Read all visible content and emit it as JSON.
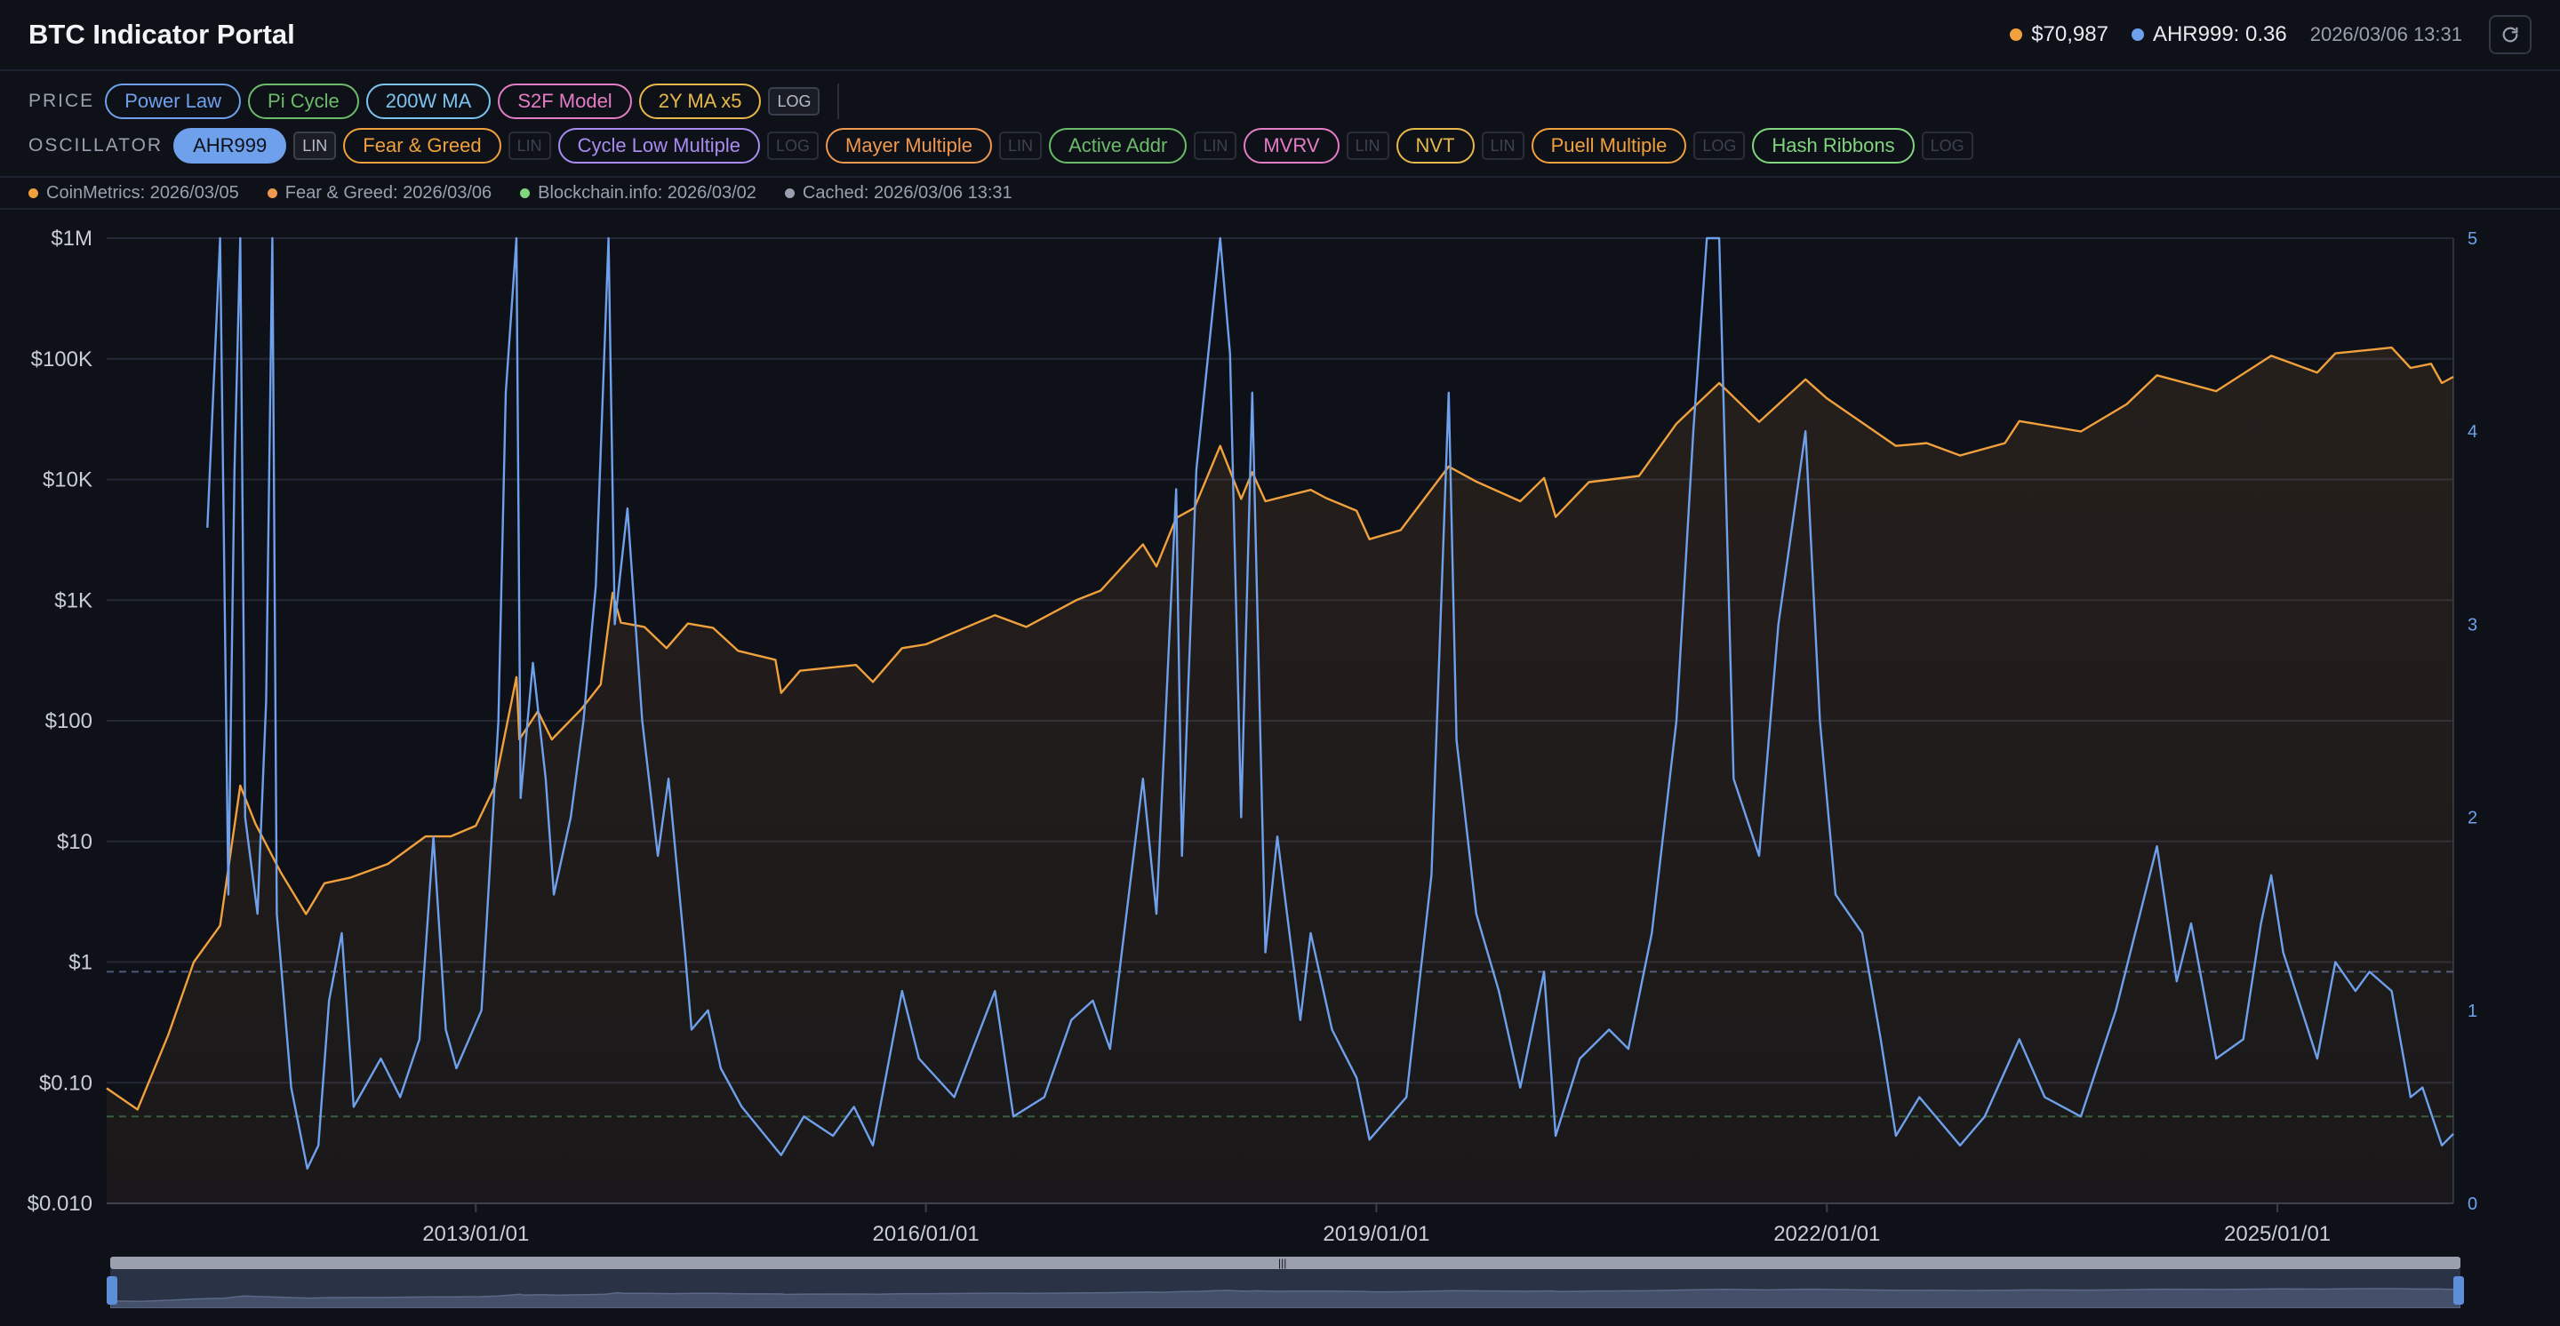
{
  "app": {
    "title": "BTC Indicator Portal",
    "price_value": "$70,987",
    "oscillator_value": "AHR999: 0.36",
    "timestamp": "2026/03/06 13:31",
    "refresh_icon": "refresh-icon"
  },
  "colors": {
    "price": "#f0a03c",
    "oscillator": "#6ea0ec",
    "background": "#0f1118"
  },
  "price_row": {
    "label": "PRICE",
    "chips": [
      {
        "label": "Power Law",
        "color": "#6ea0ec",
        "active": false
      },
      {
        "label": "Pi Cycle",
        "color": "#6cbb6a",
        "active": false
      },
      {
        "label": "200W MA",
        "color": "#7cc4f0",
        "active": false
      },
      {
        "label": "S2F Model",
        "color": "#e47cc6",
        "active": false
      },
      {
        "label": "2Y MA x5",
        "color": "#e7b84a",
        "active": false
      }
    ],
    "scale": "LOG"
  },
  "oscillator_row": {
    "label": "OSCILLATOR",
    "chips": [
      {
        "label": "AHR999",
        "color": "#6ea0ec",
        "active": true,
        "scale": "LIN",
        "scale_on": true
      },
      {
        "label": "Fear & Greed",
        "color": "#f0a03c",
        "active": false,
        "scale": "LIN",
        "scale_on": false
      },
      {
        "label": "Cycle Low Multiple",
        "color": "#a98cf2",
        "active": false,
        "scale": "LOG",
        "scale_on": false
      },
      {
        "label": "Mayer Multiple",
        "color": "#f09850",
        "active": false,
        "scale": "LIN",
        "scale_on": false
      },
      {
        "label": "Active Addr",
        "color": "#6cbb6a",
        "active": false,
        "scale": "LIN",
        "scale_on": false
      },
      {
        "label": "MVRV",
        "color": "#e47cc6",
        "active": false,
        "scale": "LIN",
        "scale_on": false
      },
      {
        "label": "NVT",
        "color": "#e7b84a",
        "active": false,
        "scale": "LIN",
        "scale_on": false
      },
      {
        "label": "Puell Multiple",
        "color": "#f0a03c",
        "active": false,
        "scale": "LOG",
        "scale_on": false
      },
      {
        "label": "Hash Ribbons",
        "color": "#7fd67d",
        "active": false,
        "scale": "LOG",
        "scale_on": false
      }
    ]
  },
  "sources": [
    {
      "text": "CoinMetrics: 2026/03/05",
      "color": "#f0a03c"
    },
    {
      "text": "Fear & Greed: 2026/03/06",
      "color": "#f09850"
    },
    {
      "text": "Blockchain.info: 2026/03/02",
      "color": "#7fd67d"
    },
    {
      "text": "Cached: 2026/03/06 13:31",
      "color": "#9aa0ae"
    }
  ],
  "range_slider": {
    "start_fraction": 0.0,
    "end_fraction": 1.0
  },
  "chart_data": {
    "type": "line",
    "title": "",
    "xlabel": "",
    "ylabel": "",
    "x_ticks": [
      "2013/01/01",
      "2016/01/01",
      "2019/01/01",
      "2022/01/01",
      "2025/01/01"
    ],
    "x_tick_dates": [
      "2013-01-01",
      "2016-01-01",
      "2019-01-01",
      "2022-01-01",
      "2025-01-01"
    ],
    "xlim": [
      "2010-07-18",
      "2026-03-05"
    ],
    "y_left": {
      "scale": "log",
      "ylim": [
        0.01,
        1000000
      ],
      "ticks": [
        0.01,
        0.1,
        1,
        10,
        100,
        1000,
        10000,
        100000,
        1000000
      ],
      "tick_labels": [
        "$0.010",
        "$0.10",
        "$1",
        "$10",
        "$100",
        "$1K",
        "$10K",
        "$100K",
        "$1M"
      ]
    },
    "y_right": {
      "scale": "linear",
      "ylim": [
        0,
        5
      ],
      "ticks": [
        0,
        1,
        2,
        3,
        4,
        5
      ],
      "tick_labels": [
        "0",
        "1",
        "2",
        "3",
        "4",
        "5"
      ]
    },
    "reference_lines": [
      {
        "axis": "right",
        "value": 1.2,
        "color": "#4a5a78"
      },
      {
        "axis": "right",
        "value": 0.45,
        "color": "#2e5a3c"
      }
    ],
    "grid": true,
    "series": [
      {
        "axis": "left",
        "color": "#f0a03c",
        "fill": true,
        "points": [
          [
            "2010-07-18",
            0.09
          ],
          [
            "2010-10-01",
            0.06
          ],
          [
            "2010-12-15",
            0.25
          ],
          [
            "2011-02-15",
            1.0
          ],
          [
            "2011-04-20",
            2.0
          ],
          [
            "2011-06-08",
            29
          ],
          [
            "2011-07-15",
            14
          ],
          [
            "2011-09-15",
            5.5
          ],
          [
            "2011-11-15",
            2.5
          ],
          [
            "2011-12-30",
            4.5
          ],
          [
            "2012-03-01",
            5.0
          ],
          [
            "2012-06-01",
            6.5
          ],
          [
            "2012-09-01",
            11
          ],
          [
            "2012-11-01",
            11
          ],
          [
            "2013-01-01",
            13.5
          ],
          [
            "2013-02-15",
            28
          ],
          [
            "2013-04-10",
            230
          ],
          [
            "2013-04-17",
            70
          ],
          [
            "2013-06-01",
            120
          ],
          [
            "2013-07-05",
            70
          ],
          [
            "2013-09-15",
            125
          ],
          [
            "2013-11-01",
            200
          ],
          [
            "2013-11-30",
            1150
          ],
          [
            "2013-12-20",
            650
          ],
          [
            "2014-02-15",
            600
          ],
          [
            "2014-04-10",
            400
          ],
          [
            "2014-06-01",
            640
          ],
          [
            "2014-08-01",
            590
          ],
          [
            "2014-10-01",
            380
          ],
          [
            "2014-12-31",
            320
          ],
          [
            "2015-01-14",
            170
          ],
          [
            "2015-03-01",
            260
          ],
          [
            "2015-07-15",
            290
          ],
          [
            "2015-08-25",
            210
          ],
          [
            "2015-11-04",
            400
          ],
          [
            "2016-01-01",
            430
          ],
          [
            "2016-06-17",
            750
          ],
          [
            "2016-09-01",
            600
          ],
          [
            "2017-01-01",
            1000
          ],
          [
            "2017-03-01",
            1200
          ],
          [
            "2017-06-12",
            2900
          ],
          [
            "2017-07-15",
            1900
          ],
          [
            "2017-09-01",
            4800
          ],
          [
            "2017-10-15",
            5800
          ],
          [
            "2017-12-17",
            19000
          ],
          [
            "2018-02-06",
            6900
          ],
          [
            "2018-03-05",
            11500
          ],
          [
            "2018-04-06",
            6600
          ],
          [
            "2018-07-25",
            8200
          ],
          [
            "2018-09-01",
            7000
          ],
          [
            "2018-11-14",
            5500
          ],
          [
            "2018-12-15",
            3200
          ],
          [
            "2019-03-01",
            3800
          ],
          [
            "2019-06-26",
            12800
          ],
          [
            "2019-09-01",
            9600
          ],
          [
            "2019-12-17",
            6600
          ],
          [
            "2020-02-13",
            10300
          ],
          [
            "2020-03-12",
            4900
          ],
          [
            "2020-06-01",
            9500
          ],
          [
            "2020-10-01",
            10700
          ],
          [
            "2020-12-31",
            29000
          ],
          [
            "2021-04-14",
            63000
          ],
          [
            "2021-07-20",
            30000
          ],
          [
            "2021-11-10",
            67500
          ],
          [
            "2022-01-01",
            47000
          ],
          [
            "2022-06-18",
            19000
          ],
          [
            "2022-09-01",
            20000
          ],
          [
            "2022-11-21",
            15800
          ],
          [
            "2023-03-10",
            20000
          ],
          [
            "2023-04-14",
            30500
          ],
          [
            "2023-09-11",
            25000
          ],
          [
            "2023-12-31",
            42000
          ],
          [
            "2024-03-14",
            73000
          ],
          [
            "2024-08-05",
            54000
          ],
          [
            "2024-12-17",
            106000
          ],
          [
            "2025-04-08",
            77000
          ],
          [
            "2025-05-22",
            111000
          ],
          [
            "2025-10-06",
            124000
          ],
          [
            "2025-11-21",
            84000
          ],
          [
            "2026-01-10",
            91000
          ],
          [
            "2026-02-05",
            63000
          ],
          [
            "2026-03-05",
            70987
          ]
        ]
      },
      {
        "axis": "right",
        "color": "#6ea0ec",
        "fill": false,
        "points": [
          [
            "2011-03-20",
            3.5
          ],
          [
            "2011-04-20",
            5.0
          ],
          [
            "2011-05-10",
            1.6
          ],
          [
            "2011-05-25",
            3.8
          ],
          [
            "2011-06-08",
            5.0
          ],
          [
            "2011-06-20",
            2.0
          ],
          [
            "2011-07-20",
            1.5
          ],
          [
            "2011-08-10",
            2.6
          ],
          [
            "2011-08-25",
            5.0
          ],
          [
            "2011-09-05",
            1.5
          ],
          [
            "2011-10-10",
            0.6
          ],
          [
            "2011-11-18",
            0.18
          ],
          [
            "2011-12-15",
            0.3
          ],
          [
            "2012-01-10",
            1.05
          ],
          [
            "2012-02-10",
            1.4
          ],
          [
            "2012-03-10",
            0.5
          ],
          [
            "2012-05-15",
            0.75
          ],
          [
            "2012-07-01",
            0.55
          ],
          [
            "2012-08-17",
            0.85
          ],
          [
            "2012-09-20",
            1.9
          ],
          [
            "2012-10-20",
            0.9
          ],
          [
            "2012-11-15",
            0.7
          ],
          [
            "2013-01-15",
            1.0
          ],
          [
            "2013-02-25",
            2.5
          ],
          [
            "2013-03-15",
            4.2
          ],
          [
            "2013-04-10",
            5.0
          ],
          [
            "2013-04-20",
            2.1
          ],
          [
            "2013-05-20",
            2.8
          ],
          [
            "2013-06-20",
            2.2
          ],
          [
            "2013-07-10",
            1.6
          ],
          [
            "2013-08-20",
            2.0
          ],
          [
            "2013-09-20",
            2.5
          ],
          [
            "2013-10-20",
            3.2
          ],
          [
            "2013-11-20",
            5.0
          ],
          [
            "2013-12-05",
            3.0
          ],
          [
            "2014-01-05",
            3.6
          ],
          [
            "2014-02-10",
            2.5
          ],
          [
            "2014-03-20",
            1.8
          ],
          [
            "2014-04-15",
            2.2
          ],
          [
            "2014-05-25",
            1.3
          ],
          [
            "2014-06-10",
            0.9
          ],
          [
            "2014-07-20",
            1.0
          ],
          [
            "2014-08-20",
            0.7
          ],
          [
            "2014-10-10",
            0.5
          ],
          [
            "2015-01-14",
            0.25
          ],
          [
            "2015-03-10",
            0.45
          ],
          [
            "2015-05-20",
            0.35
          ],
          [
            "2015-07-10",
            0.5
          ],
          [
            "2015-08-25",
            0.3
          ],
          [
            "2015-11-04",
            1.1
          ],
          [
            "2015-12-15",
            0.75
          ],
          [
            "2016-03-10",
            0.55
          ],
          [
            "2016-06-17",
            1.1
          ],
          [
            "2016-08-01",
            0.45
          ],
          [
            "2016-10-15",
            0.55
          ],
          [
            "2016-12-20",
            0.95
          ],
          [
            "2017-02-10",
            1.05
          ],
          [
            "2017-03-24",
            0.8
          ],
          [
            "2017-06-12",
            2.2
          ],
          [
            "2017-07-15",
            1.5
          ],
          [
            "2017-09-01",
            3.7
          ],
          [
            "2017-09-15",
            1.8
          ],
          [
            "2017-10-20",
            3.8
          ],
          [
            "2017-12-17",
            5.0
          ],
          [
            "2018-01-10",
            4.4
          ],
          [
            "2018-02-06",
            2.0
          ],
          [
            "2018-03-05",
            4.2
          ],
          [
            "2018-04-06",
            1.3
          ],
          [
            "2018-05-05",
            1.9
          ],
          [
            "2018-06-30",
            0.95
          ],
          [
            "2018-07-25",
            1.4
          ],
          [
            "2018-09-15",
            0.9
          ],
          [
            "2018-11-14",
            0.65
          ],
          [
            "2018-12-15",
            0.33
          ],
          [
            "2019-03-15",
            0.55
          ],
          [
            "2019-05-15",
            1.7
          ],
          [
            "2019-06-26",
            4.2
          ],
          [
            "2019-07-15",
            2.4
          ],
          [
            "2019-09-01",
            1.5
          ],
          [
            "2019-10-26",
            1.1
          ],
          [
            "2019-12-17",
            0.6
          ],
          [
            "2020-02-13",
            1.2
          ],
          [
            "2020-03-12",
            0.35
          ],
          [
            "2020-05-10",
            0.75
          ],
          [
            "2020-07-20",
            0.9
          ],
          [
            "2020-09-05",
            0.8
          ],
          [
            "2020-11-01",
            1.4
          ],
          [
            "2020-12-31",
            2.5
          ],
          [
            "2021-02-10",
            4.0
          ],
          [
            "2021-03-15",
            5.0
          ],
          [
            "2021-04-14",
            5.0
          ],
          [
            "2021-05-19",
            2.2
          ],
          [
            "2021-07-20",
            1.8
          ],
          [
            "2021-09-05",
            3.0
          ],
          [
            "2021-11-10",
            4.0
          ],
          [
            "2021-12-15",
            2.5
          ],
          [
            "2022-01-22",
            1.6
          ],
          [
            "2022-03-28",
            1.4
          ],
          [
            "2022-05-12",
            0.85
          ],
          [
            "2022-06-18",
            0.35
          ],
          [
            "2022-08-14",
            0.55
          ],
          [
            "2022-11-21",
            0.3
          ],
          [
            "2023-01-20",
            0.45
          ],
          [
            "2023-04-14",
            0.85
          ],
          [
            "2023-06-15",
            0.55
          ],
          [
            "2023-09-11",
            0.45
          ],
          [
            "2023-12-05",
            1.0
          ],
          [
            "2024-03-14",
            1.85
          ],
          [
            "2024-05-01",
            1.15
          ],
          [
            "2024-06-05",
            1.45
          ],
          [
            "2024-08-05",
            0.75
          ],
          [
            "2024-10-10",
            0.85
          ],
          [
            "2024-11-22",
            1.45
          ],
          [
            "2024-12-17",
            1.7
          ],
          [
            "2025-01-15",
            1.3
          ],
          [
            "2025-04-08",
            0.75
          ],
          [
            "2025-05-22",
            1.25
          ],
          [
            "2025-07-10",
            1.1
          ],
          [
            "2025-08-13",
            1.2
          ],
          [
            "2025-10-06",
            1.1
          ],
          [
            "2025-11-21",
            0.55
          ],
          [
            "2025-12-20",
            0.6
          ],
          [
            "2026-02-05",
            0.3
          ],
          [
            "2026-03-05",
            0.36
          ]
        ]
      }
    ],
    "range_slider": true
  }
}
